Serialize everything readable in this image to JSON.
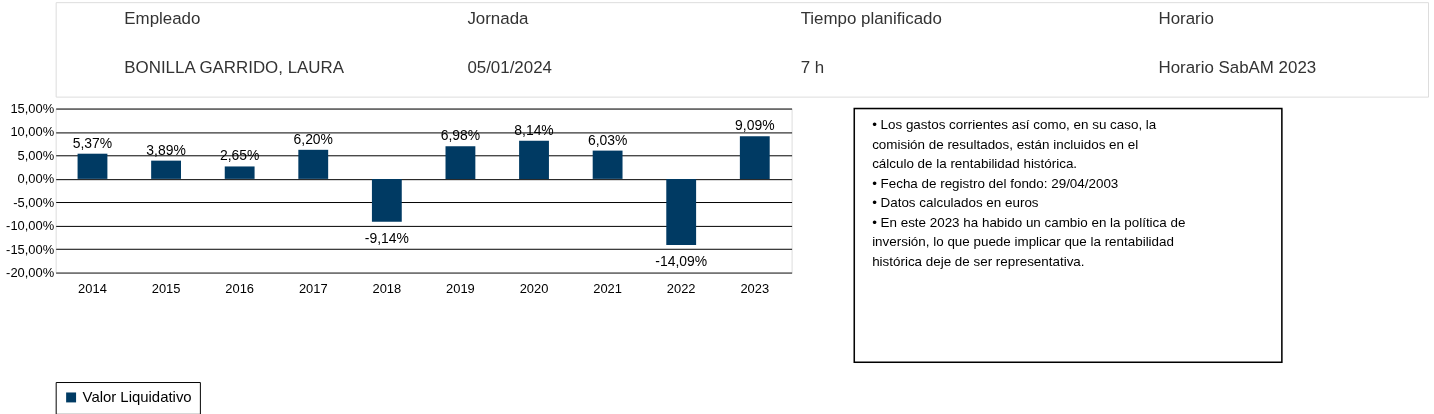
{
  "chart_data": {
    "type": "bar",
    "categories": [
      "2014",
      "2015",
      "2016",
      "2017",
      "2018",
      "2019",
      "2020",
      "2021",
      "2022",
      "2023"
    ],
    "series": [
      {
        "name": "Valor Liquidativo",
        "color": "#003a63",
        "values": [
          5.37,
          3.89,
          2.65,
          6.2,
          -9.14,
          6.98,
          8.14,
          6.03,
          -14.09,
          9.09
        ],
        "value_labels": [
          "5,37%",
          "3,89%",
          "2,65%",
          "6,20%",
          "-9,14%",
          "6,98%",
          "8,14%",
          "6,03%",
          "-14,09%",
          "9,09%"
        ]
      }
    ],
    "ylim": [
      -20,
      15
    ],
    "yticks": [
      {
        "value": -20,
        "label": "-20,00%"
      },
      {
        "value": -15,
        "label": "-15,00%"
      },
      {
        "value": -10,
        "label": "-10,00%"
      },
      {
        "value": -5,
        "label": "-5,00%"
      },
      {
        "value": 0,
        "label": "0,00%"
      },
      {
        "value": 5,
        "label": "5,00%"
      },
      {
        "value": 10,
        "label": "10,00%"
      },
      {
        "value": 15,
        "label": "15,00%"
      }
    ],
    "grid": "y",
    "legend": "bottom",
    "annotations": [
      "Empleado",
      "Jornada",
      "Tiempo planificado",
      "Horario",
      "BONILLA GARRIDO, LAURA",
      "05/01/2024",
      "7 h",
      "Horario SabAM 2023",
      "• Los gastos corrientes así como, en su caso, la comisión de resultados, están incluidos en el cálculo de la rentabilidad histórica.",
      "• Fecha de registro del fondo: 29/04/2003",
      "• Datos calculados en euros",
      "• En este 2023 ha habido un cambio en la política de inversión, lo que puede implicar que la rentabilidad histórica deje de ser representativa."
    ]
  }
}
